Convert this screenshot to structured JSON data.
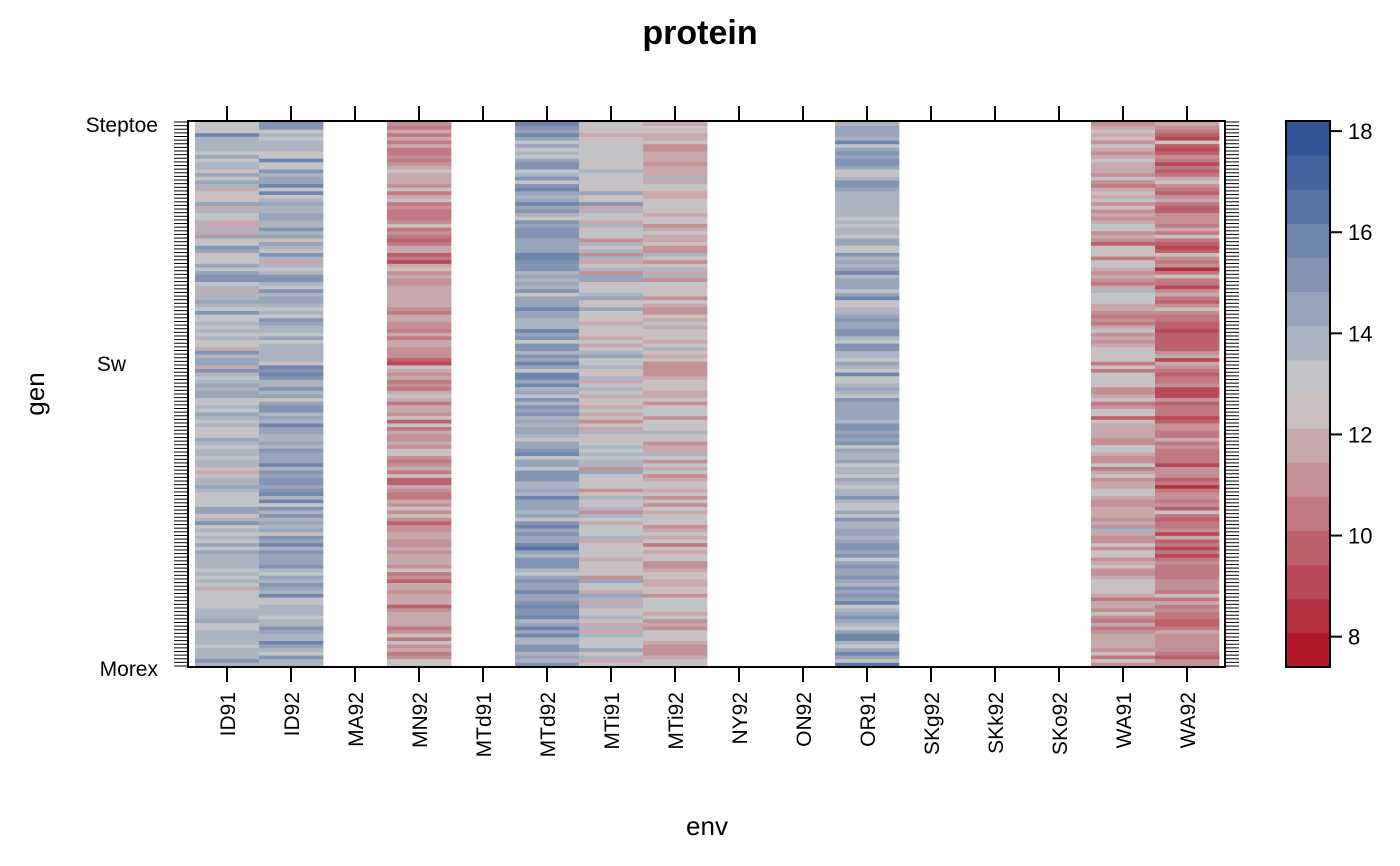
{
  "chart_data": {
    "type": "heatmap",
    "title": "protein",
    "xlabel": "env",
    "ylabel": "gen",
    "x_categories": [
      "ID91",
      "ID92",
      "MA92",
      "MN92",
      "MTd91",
      "MTd92",
      "MTi91",
      "MTi92",
      "NY92",
      "ON92",
      "OR91",
      "SKg92",
      "SKk92",
      "SKo92",
      "WA91",
      "WA92"
    ],
    "columns_with_data": [
      "ID91",
      "ID92",
      "MN92",
      "MTd92",
      "MTi91",
      "MTi92",
      "OR91",
      "WA91",
      "WA92"
    ],
    "empty_columns": [
      "MA92",
      "MTd91",
      "NY92",
      "ON92",
      "SKg92",
      "SKk92",
      "SKo92"
    ],
    "y_bottom_label": "Morex",
    "y_top_label": "Steptoe",
    "y_mid_label_partial": "Sw",
    "n_rows_approx": 150,
    "column_mean_protein": {
      "ID91": 13.5,
      "ID92": 14.2,
      "MN92": 11.3,
      "MTd92": 14.6,
      "MTi91": 12.9,
      "MTi92": 12.0,
      "OR91": 14.2,
      "WA91": 11.8,
      "WA92": 10.6
    },
    "colorbar": {
      "min": 7.4,
      "max": 18.2,
      "ticks": [
        8,
        10,
        12,
        14,
        16,
        18
      ],
      "n_levels": 16,
      "low_color": "#b2182b",
      "mid_color": "#cccccc",
      "high_color": "#2f5597"
    }
  }
}
